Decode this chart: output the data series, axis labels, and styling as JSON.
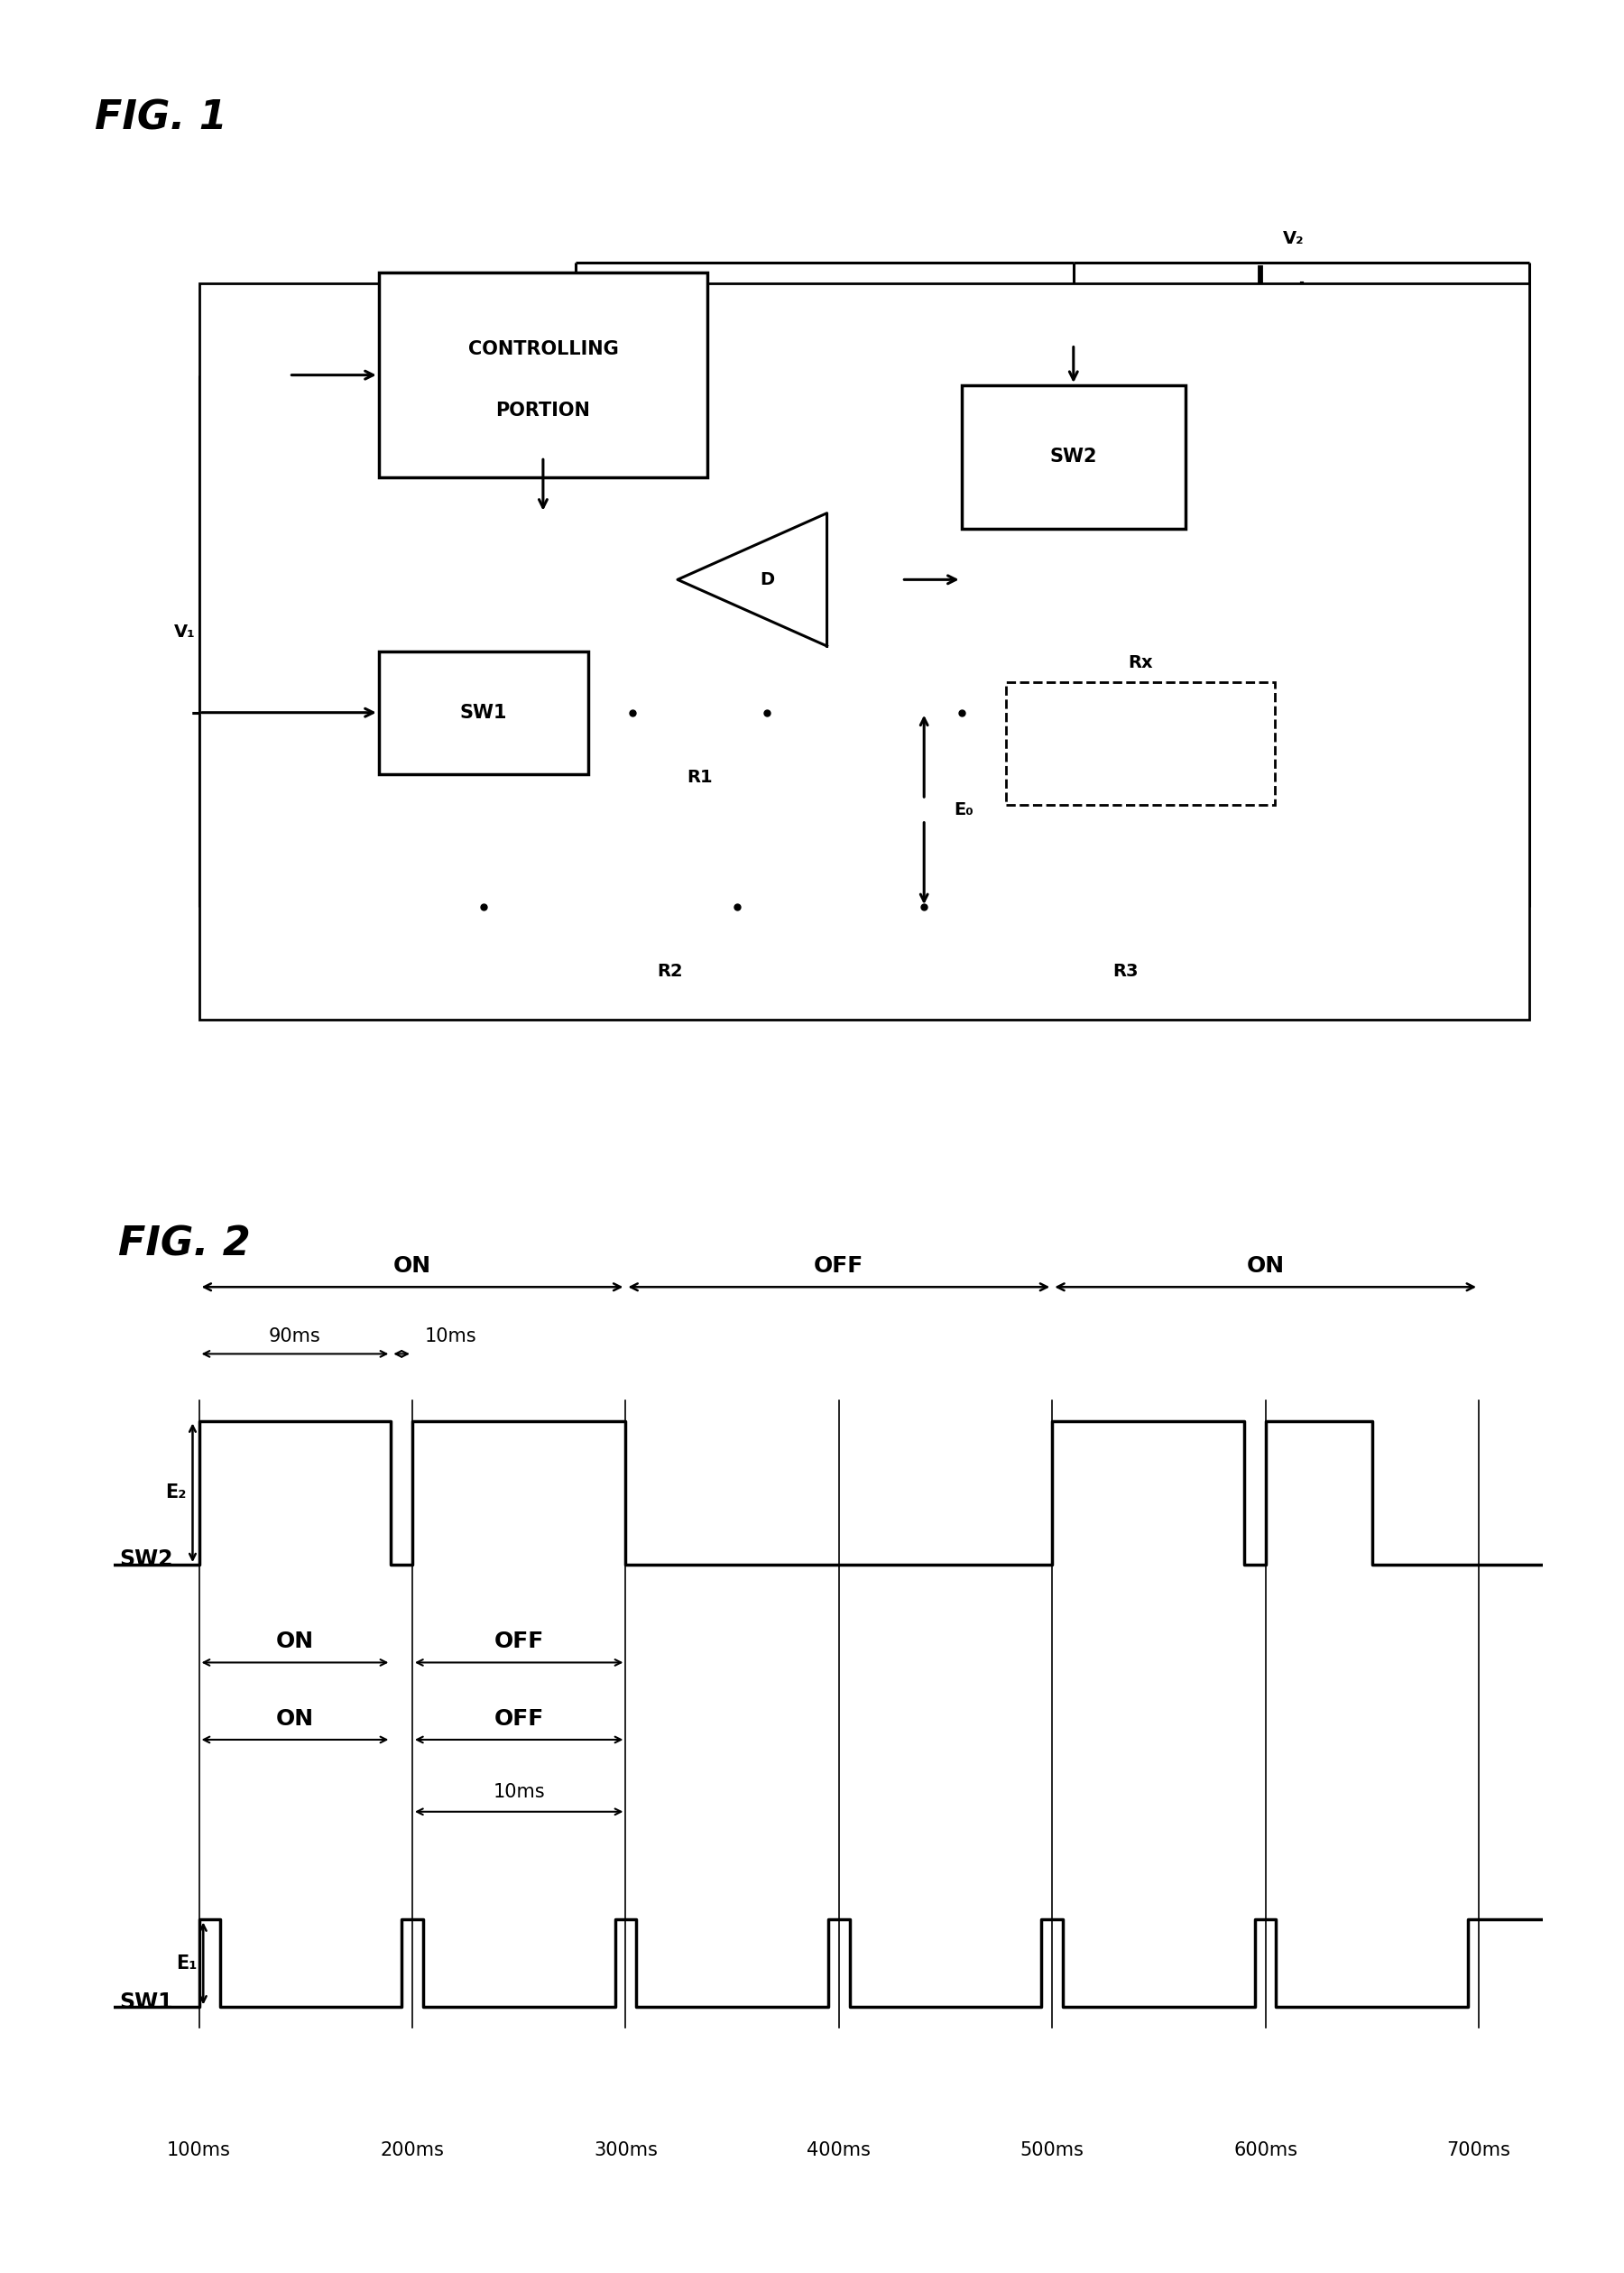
{
  "fig1_title": "FIG. 1",
  "fig2_title": "FIG. 2",
  "background_color": "#ffffff",
  "line_color": "#000000",
  "sw2_signal_times": [
    100,
    100,
    190,
    190,
    200,
    200,
    300,
    300,
    500,
    500,
    590,
    590,
    600,
    600,
    650,
    650,
    700
  ],
  "sw2_signal_values": [
    0,
    1,
    1,
    0,
    0,
    1,
    1,
    0,
    0,
    1,
    1,
    0,
    0,
    1,
    1,
    0,
    0
  ],
  "sw1_signal_times": [
    100,
    100,
    110,
    110,
    195,
    195,
    205,
    205,
    295,
    295,
    305,
    305,
    395,
    395,
    405,
    405,
    495,
    495,
    505,
    505,
    595,
    595,
    605,
    605,
    695,
    695,
    700
  ],
  "sw1_signal_values": [
    0,
    1,
    1,
    0,
    0,
    1,
    1,
    0,
    0,
    1,
    1,
    0,
    0,
    1,
    1,
    0,
    0,
    1,
    1,
    0,
    0,
    1,
    1,
    0,
    0,
    1,
    1
  ],
  "x_ticks": [
    100,
    200,
    300,
    400,
    500,
    600,
    700
  ],
  "x_tick_labels": [
    "100ms",
    "200ms",
    "300ms",
    "400ms",
    "500ms",
    "600ms",
    "700ms"
  ],
  "font_size_fig_title": 32,
  "font_size_box_label": 15,
  "font_size_component": 14,
  "font_size_signal_label": 17,
  "font_size_period_label": 18,
  "font_size_annot": 15,
  "font_size_tick": 15
}
